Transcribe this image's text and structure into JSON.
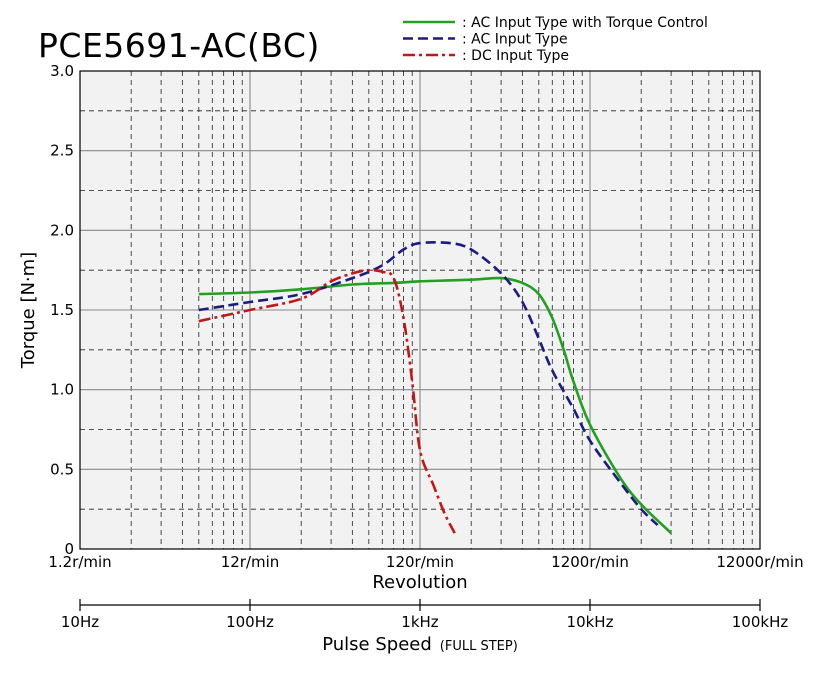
{
  "chart_data": {
    "type": "line",
    "title": "PCE5691-AC(BC)",
    "xscale": "log",
    "xlim": [
      10,
      100000
    ],
    "ylim": [
      0,
      3.0
    ],
    "grid": true,
    "legend_placement": "top",
    "ylabel": "Torque [N·m]",
    "y_ticks": [
      "0",
      "0.5",
      "1.0",
      "1.5",
      "2.0",
      "2.5",
      "3.0"
    ],
    "revolution_axis": {
      "label": "Revolution",
      "ticks": [
        "1.2r/min",
        "12r/min",
        "120r/min",
        "1200r/min",
        "12000r/min"
      ]
    },
    "pulse_axis": {
      "label": "Pulse Speed",
      "label_note": "(FULL STEP)",
      "ticks": [
        "10Hz",
        "100Hz",
        "1kHz",
        "10kHz",
        "100kHz"
      ]
    },
    "series": [
      {
        "name": ": AC Input Type with Torque Control",
        "color": "#22a020",
        "dash": "solid",
        "x": [
          50,
          100,
          200,
          400,
          700,
          1000,
          2000,
          3000,
          4000,
          5000,
          6000,
          7000,
          8000,
          10000,
          15000,
          20000,
          30000
        ],
        "y": [
          1.6,
          1.61,
          1.63,
          1.66,
          1.67,
          1.68,
          1.69,
          1.7,
          1.67,
          1.6,
          1.45,
          1.25,
          1.05,
          0.78,
          0.45,
          0.28,
          0.1
        ]
      },
      {
        "name": ": AC Input Type",
        "color": "#1c1c80",
        "dash": "dashed",
        "x": [
          50,
          100,
          200,
          400,
          600,
          800,
          1000,
          1500,
          2000,
          3000,
          4000,
          5000,
          6000,
          8000,
          10000,
          15000,
          20000,
          25000
        ],
        "y": [
          1.5,
          1.55,
          1.6,
          1.7,
          1.78,
          1.88,
          1.92,
          1.92,
          1.88,
          1.73,
          1.55,
          1.32,
          1.12,
          0.88,
          0.68,
          0.42,
          0.25,
          0.15
        ]
      },
      {
        "name": ": DC Input Type",
        "color": "#c01818",
        "dash": "dashdot",
        "x": [
          50,
          100,
          200,
          300,
          400,
          500,
          600,
          700,
          800,
          900,
          1000,
          1200,
          1400,
          1600
        ],
        "y": [
          1.43,
          1.5,
          1.57,
          1.68,
          1.73,
          1.75,
          1.74,
          1.7,
          1.45,
          1.05,
          0.62,
          0.4,
          0.22,
          0.1
        ]
      }
    ]
  }
}
